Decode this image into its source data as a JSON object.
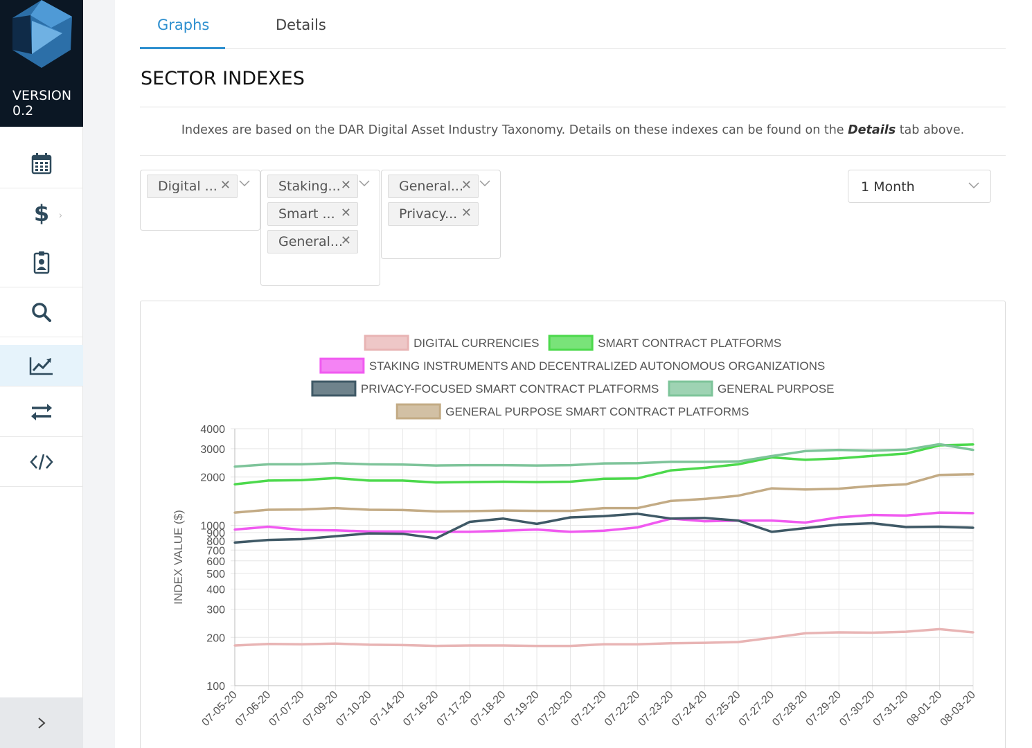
{
  "sidebar": {
    "version_label": "VERSION",
    "version_number": "0.2",
    "items": [
      {
        "icon": "calendar-icon"
      },
      {
        "icon": "dollar-icon"
      },
      {
        "icon": "id-badge-icon"
      },
      {
        "icon": "search-icon"
      },
      {
        "icon": "line-chart-icon",
        "active": true
      },
      {
        "icon": "exchange-icon"
      },
      {
        "icon": "code-icon"
      }
    ],
    "collapse_label": ">"
  },
  "tabs": [
    {
      "label": "Graphs",
      "active": true
    },
    {
      "label": "Details",
      "active": false
    }
  ],
  "page": {
    "title": "SECTOR INDEXES",
    "description_before": "Indexes are based on the DAR Digital Asset Industry Taxonomy. Details on these indexes can be found on the ",
    "description_bold": "Details",
    "description_after": " tab above."
  },
  "filters": {
    "select1": [
      "Digital ..."
    ],
    "select2": [
      "Staking...",
      "Smart ...",
      "General..."
    ],
    "select3": [
      "General...",
      "Privacy..."
    ],
    "remove_glyph": "✕",
    "period": "1 Month"
  },
  "chart_data": {
    "type": "line",
    "ylabel": "INDEX VALUE ($)",
    "yscale": "log",
    "ylim": [
      100,
      4000
    ],
    "yticks": [
      100,
      200,
      300,
      400,
      500,
      600,
      700,
      800,
      900,
      1000,
      2000,
      3000,
      4000
    ],
    "x": [
      "07-05-20",
      "07-06-20",
      "07-07-20",
      "07-09-20",
      "07-10-20",
      "07-14-20",
      "07-16-20",
      "07-17-20",
      "07-18-20",
      "07-19-20",
      "07-20-20",
      "07-21-20",
      "07-22-20",
      "07-23-20",
      "07-24-20",
      "07-25-20",
      "07-27-20",
      "07-28-20",
      "07-29-20",
      "07-30-20",
      "07-31-20",
      "08-01-20",
      "08-03-20"
    ],
    "legend_position": "top",
    "grid": true,
    "series": [
      {
        "name": "DIGITAL CURRENCIES",
        "color": "#e8b4b4",
        "values": [
          178,
          182,
          181,
          183,
          180,
          179,
          177,
          178,
          178,
          177,
          177,
          181,
          181,
          184,
          185,
          187,
          199,
          212,
          215,
          214,
          217,
          225,
          215
        ]
      },
      {
        "name": "SMART CONTRACT PLATFORMS",
        "color": "#4cd94c",
        "values": [
          1800,
          1900,
          1910,
          1970,
          1900,
          1900,
          1850,
          1860,
          1870,
          1860,
          1870,
          1950,
          1960,
          2200,
          2280,
          2400,
          2650,
          2560,
          2610,
          2710,
          2800,
          3150,
          3190
        ]
      },
      {
        "name": "STAKING INSTRUMENTS AND DECENTRALIZED AUTONOMOUS ORGANIZATIONS",
        "color": "#f05af0",
        "values": [
          940,
          980,
          935,
          930,
          915,
          915,
          910,
          910,
          925,
          940,
          910,
          925,
          970,
          1100,
          1060,
          1070,
          1070,
          1040,
          1120,
          1160,
          1150,
          1200,
          1190
        ]
      },
      {
        "name": "PRIVACY-FOCUSED SMART CONTRACT PLATFORMS",
        "color": "#3f5966",
        "values": [
          780,
          810,
          820,
          855,
          890,
          885,
          830,
          1050,
          1100,
          1020,
          1120,
          1140,
          1180,
          1100,
          1110,
          1070,
          910,
          960,
          1010,
          1030,
          975,
          980,
          965
        ]
      },
      {
        "name": "GENERAL PURPOSE",
        "color": "#7ec49a",
        "values": [
          2320,
          2400,
          2400,
          2440,
          2400,
          2390,
          2360,
          2370,
          2370,
          2360,
          2370,
          2430,
          2440,
          2490,
          2490,
          2500,
          2700,
          2900,
          2950,
          2920,
          2960,
          3200,
          2950
        ]
      },
      {
        "name": "GENERAL PURPOSE SMART CONTRACT PLATFORMS",
        "color": "#c3ab85",
        "values": [
          1200,
          1250,
          1255,
          1280,
          1250,
          1245,
          1220,
          1225,
          1235,
          1230,
          1230,
          1280,
          1280,
          1420,
          1460,
          1530,
          1700,
          1670,
          1690,
          1760,
          1800,
          2060,
          2080
        ]
      }
    ]
  }
}
